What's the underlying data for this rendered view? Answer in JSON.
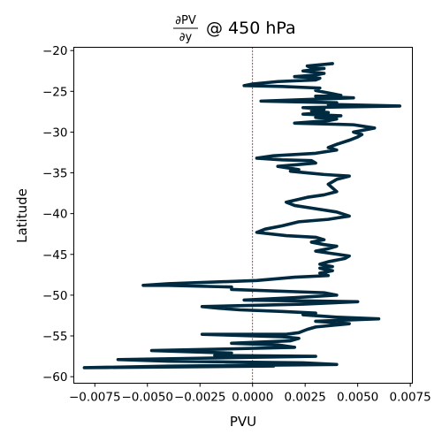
{
  "chart_data": {
    "type": "line",
    "title_formula": {
      "numerator": "∂PV",
      "denominator": "∂y"
    },
    "title_suffix": "@ 450 hPa",
    "xlabel": "PVU",
    "ylabel": "Latitude",
    "xlim": [
      -0.0085,
      0.0076
    ],
    "ylim": [
      -60.8,
      -19.6
    ],
    "xticks": [
      -0.0075,
      -0.005,
      -0.0025,
      0.0,
      0.0025,
      0.005,
      0.0075
    ],
    "xtick_labels": [
      "−0.0075",
      "−0.0050",
      "−0.0025",
      "0.0000",
      "0.0025",
      "0.0050",
      "0.0075"
    ],
    "yticks": [
      -20,
      -25,
      -30,
      -35,
      -40,
      -45,
      -50,
      -55,
      -60
    ],
    "ytick_labels": [
      "−20",
      "−25",
      "−30",
      "−35",
      "−40",
      "−45",
      "−50",
      "−55",
      "−60"
    ],
    "grid": false,
    "zero_line": {
      "x": 0.0,
      "color": "#8b1a1a",
      "style": "dashed"
    },
    "series": [
      {
        "color": "#002a40",
        "points": [
          [
            0.0038,
            -21.6
          ],
          [
            0.0026,
            -21.9
          ],
          [
            0.0028,
            -22.1
          ],
          [
            0.0034,
            -22.2
          ],
          [
            0.0024,
            -22.5
          ],
          [
            0.0034,
            -22.8
          ],
          [
            0.003,
            -23.0
          ],
          [
            0.002,
            -23.2
          ],
          [
            0.0032,
            -23.4
          ],
          [
            0.003,
            -23.6
          ],
          [
            0.0012,
            -23.8
          ],
          [
            0.0,
            -24.1
          ],
          [
            -0.0004,
            -24.3
          ],
          [
            0.0014,
            -24.4
          ],
          [
            0.0032,
            -24.6
          ],
          [
            0.003,
            -24.9
          ],
          [
            0.0038,
            -25.3
          ],
          [
            0.0042,
            -25.5
          ],
          [
            0.003,
            -25.6
          ],
          [
            0.0048,
            -25.8
          ],
          [
            0.0004,
            -26.2
          ],
          [
            0.004,
            -26.4
          ],
          [
            0.0036,
            -26.6
          ],
          [
            0.007,
            -26.8
          ],
          [
            0.0024,
            -27.0
          ],
          [
            0.0034,
            -27.2
          ],
          [
            0.0028,
            -27.4
          ],
          [
            0.0036,
            -27.6
          ],
          [
            0.0024,
            -27.8
          ],
          [
            0.0042,
            -28.0
          ],
          [
            0.003,
            -28.2
          ],
          [
            0.004,
            -28.4
          ],
          [
            0.0036,
            -28.6
          ],
          [
            0.002,
            -28.9
          ],
          [
            0.0048,
            -29.1
          ],
          [
            0.0058,
            -29.5
          ],
          [
            0.0052,
            -29.8
          ],
          [
            0.0048,
            -30.0
          ],
          [
            0.0052,
            -30.3
          ],
          [
            0.005,
            -30.6
          ],
          [
            0.0046,
            -31.0
          ],
          [
            0.004,
            -31.5
          ],
          [
            0.0036,
            -31.9
          ],
          [
            0.004,
            -32.2
          ],
          [
            0.003,
            -32.6
          ],
          [
            0.001,
            -32.9
          ],
          [
            0.0002,
            -33.2
          ],
          [
            0.0014,
            -33.4
          ],
          [
            0.0028,
            -33.5
          ],
          [
            0.003,
            -33.8
          ],
          [
            0.0012,
            -34.2
          ],
          [
            0.0022,
            -34.6
          ],
          [
            0.0018,
            -34.8
          ],
          [
            0.0026,
            -35.0
          ],
          [
            0.0034,
            -35.2
          ],
          [
            0.0046,
            -35.4
          ],
          [
            0.004,
            -35.8
          ],
          [
            0.0036,
            -36.4
          ],
          [
            0.004,
            -37.3
          ],
          [
            0.0034,
            -37.7
          ],
          [
            0.0026,
            -38.0
          ],
          [
            0.0016,
            -38.6
          ],
          [
            0.002,
            -39.0
          ],
          [
            0.003,
            -39.4
          ],
          [
            0.004,
            -39.8
          ],
          [
            0.0046,
            -40.3
          ],
          [
            0.0036,
            -40.7
          ],
          [
            0.0022,
            -41.0
          ],
          [
            0.0014,
            -41.5
          ],
          [
            0.0006,
            -41.9
          ],
          [
            0.0002,
            -42.3
          ],
          [
            0.0016,
            -42.7
          ],
          [
            0.003,
            -42.9
          ],
          [
            0.0034,
            -43.2
          ],
          [
            0.0028,
            -43.5
          ],
          [
            0.0034,
            -43.8
          ],
          [
            0.004,
            -44.0
          ],
          [
            0.0036,
            -44.3
          ],
          [
            0.003,
            -44.6
          ],
          [
            0.0038,
            -44.9
          ],
          [
            0.0046,
            -45.2
          ],
          [
            0.0044,
            -45.5
          ],
          [
            0.0036,
            -45.9
          ],
          [
            0.0032,
            -46.2
          ],
          [
            0.0038,
            -46.5
          ],
          [
            0.0032,
            -46.7
          ],
          [
            0.0038,
            -47.0
          ],
          [
            0.0032,
            -47.3
          ],
          [
            0.0036,
            -47.6
          ],
          [
            0.002,
            -47.8
          ],
          [
            0.0002,
            -48.2
          ],
          [
            -0.004,
            -48.6
          ],
          [
            -0.0052,
            -48.8
          ],
          [
            -0.004,
            -48.8
          ],
          [
            -0.001,
            -49.0
          ],
          [
            -0.001,
            -49.3
          ],
          [
            0.0034,
            -49.7
          ],
          [
            0.004,
            -50.0
          ],
          [
            0.002,
            -50.3
          ],
          [
            -0.0004,
            -50.6
          ],
          [
            0.005,
            -50.8
          ],
          [
            0.0024,
            -51.1
          ],
          [
            -0.0024,
            -51.4
          ],
          [
            -0.0016,
            -51.6
          ],
          [
            -0.0006,
            -51.8
          ],
          [
            0.0014,
            -52.0
          ],
          [
            0.003,
            -52.2
          ],
          [
            0.0024,
            -52.4
          ],
          [
            0.004,
            -52.7
          ],
          [
            0.006,
            -52.9
          ],
          [
            0.003,
            -53.2
          ],
          [
            0.0046,
            -53.5
          ],
          [
            0.003,
            -53.9
          ],
          [
            0.0026,
            -54.2
          ],
          [
            0.0022,
            -54.6
          ],
          [
            0.0016,
            -54.8
          ],
          [
            -0.0024,
            -54.8
          ],
          [
            0.0014,
            -55.1
          ],
          [
            0.0022,
            -55.3
          ],
          [
            0.0018,
            -55.6
          ],
          [
            -0.001,
            -55.9
          ],
          [
            0.0012,
            -56.1
          ],
          [
            0.002,
            -56.4
          ],
          [
            -0.0012,
            -56.6
          ],
          [
            -0.0048,
            -56.8
          ],
          [
            -0.001,
            -57.1
          ],
          [
            -0.0018,
            -57.4
          ],
          [
            0.003,
            -57.5
          ],
          [
            -0.0064,
            -57.9
          ],
          [
            -0.004,
            -58.1
          ],
          [
            0.0024,
            -58.3
          ],
          [
            0.004,
            -58.5
          ],
          [
            -0.004,
            -58.7
          ],
          [
            -0.008,
            -58.9
          ],
          [
            0.001,
            -58.7
          ]
        ]
      }
    ]
  }
}
